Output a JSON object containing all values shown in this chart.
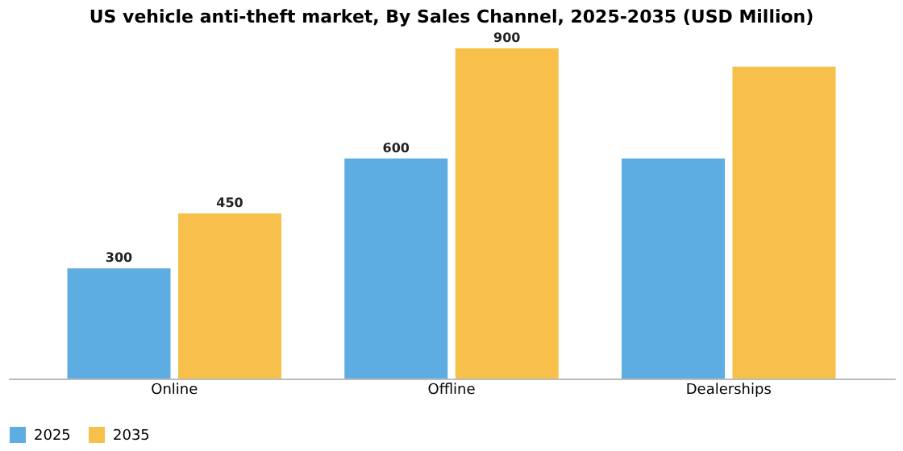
{
  "chart_data": {
    "type": "bar",
    "title": "US vehicle anti-theft market, By Sales Channel, 2025-2035 (USD Million)",
    "categories": [
      "Online",
      "Offline",
      "Dealerships"
    ],
    "series": [
      {
        "name": "2025",
        "color": "#5dade2",
        "values": [
          300,
          600,
          600
        ],
        "value_labels": [
          "300",
          "600",
          null
        ]
      },
      {
        "name": "2035",
        "color": "#f7c04a",
        "values": [
          450,
          900,
          850
        ],
        "value_labels": [
          "450",
          "900",
          null
        ]
      }
    ],
    "legend": "bottom",
    "grid": false
  }
}
